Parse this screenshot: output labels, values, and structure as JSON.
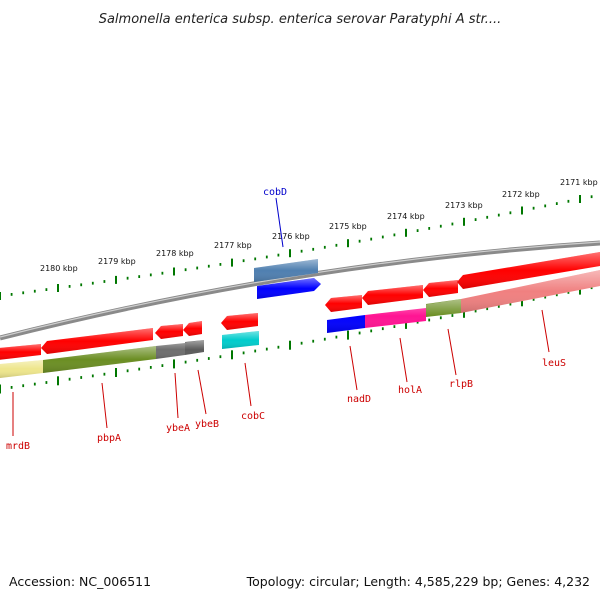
{
  "title": "Salmonella enterica subsp. enterica serovar Paratyphi A str....",
  "footer": {
    "accession": "Accession: NC_006511",
    "stats": "Topology: circular; Length: 4,585,229 bp; Genes: 4,232"
  },
  "ruler": {
    "unit": "kbp",
    "labels": [
      "2180 kbp",
      "2179 kbp",
      "2178 kbp",
      "2177 kbp",
      "2176 kbp",
      "2175 kbp",
      "2174 kbp",
      "2173 kbp",
      "2172 kbp",
      "2171 kbp"
    ]
  },
  "genes": [
    {
      "name": "mrdB",
      "color": "#cc0000"
    },
    {
      "name": "pbpA",
      "color": "#cc0000"
    },
    {
      "name": "ybeA",
      "color": "#cc0000"
    },
    {
      "name": "ybeB",
      "color": "#cc0000"
    },
    {
      "name": "cobC",
      "color": "#cc0000"
    },
    {
      "name": "cobD",
      "color": "#0000cc"
    },
    {
      "name": "nadD",
      "color": "#cc0000"
    },
    {
      "name": "holA",
      "color": "#cc0000"
    },
    {
      "name": "rlpB",
      "color": "#cc0000"
    },
    {
      "name": "leuS",
      "color": "#cc0000"
    }
  ],
  "colors": {
    "forward_cds": "#ff0000",
    "reverse_cds_blue": "#0000ff",
    "steelblue_feature": "#4f7fb0",
    "olive_cog": "#6b8e23",
    "khaki_cog": "#eee68c",
    "gray_cog": "#6e6e6e",
    "cyan_cog": "#00cccc",
    "magenta_cog": "#ff1493",
    "salmon_cog": "#f08080",
    "backbone": "#808080",
    "tick_marks": "#007700"
  }
}
